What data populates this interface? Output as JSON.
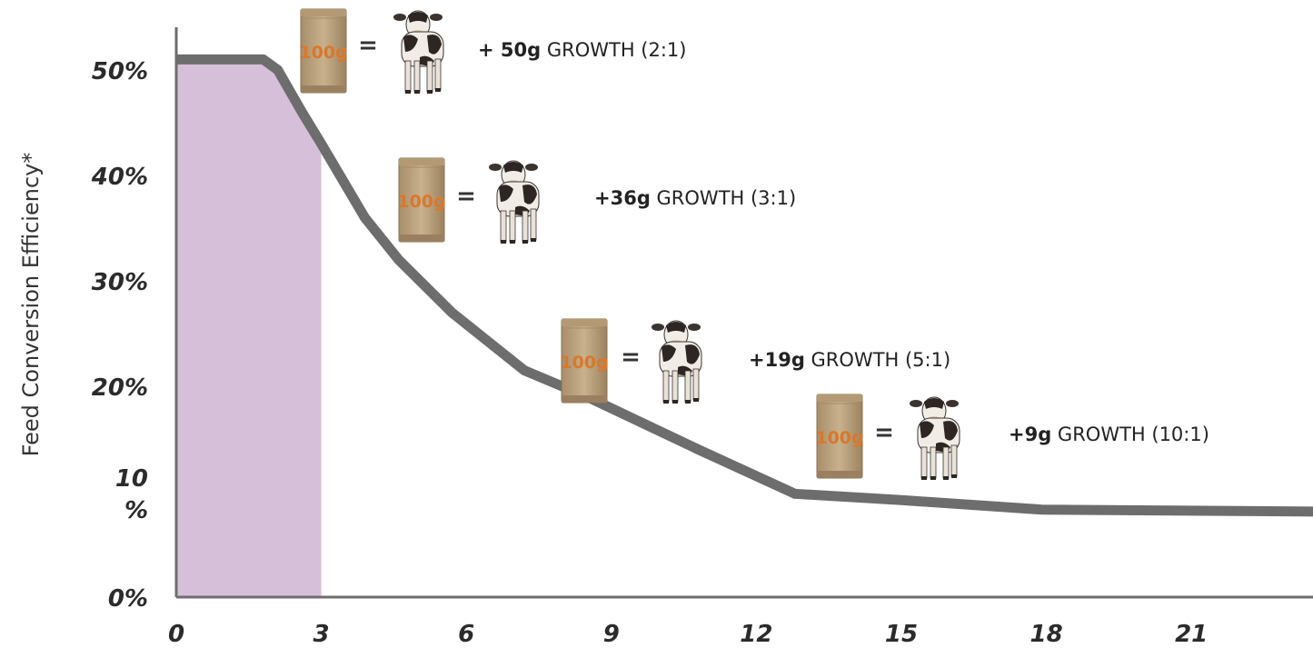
{
  "chart_data": {
    "type": "line",
    "ylabel": "Feed Conversion Efficiency*",
    "xlabel": "",
    "xlim": [
      0,
      24
    ],
    "ylim": [
      0,
      52
    ],
    "x_ticks": [
      "0",
      "3",
      "6",
      "9",
      "12",
      "15",
      "18",
      "21"
    ],
    "y_ticks": [
      {
        "value": 50,
        "label": "50%"
      },
      {
        "value": 40,
        "label": "40%"
      },
      {
        "value": 30,
        "label": "30%"
      },
      {
        "value": 20,
        "label": "20%"
      },
      {
        "value": 10,
        "label": "10\n%"
      },
      {
        "value": 0,
        "label": "0%"
      }
    ],
    "line_color": "#6d6d6d",
    "shade_color": "#d6bfd8",
    "highlight_range": [
      0,
      3
    ],
    "series": [
      {
        "x": [
          0,
          1.8,
          2.1,
          2.6,
          3.0,
          3.9,
          4.6,
          5.7,
          7.2,
          8.5,
          10.8,
          12.8,
          15.0,
          17.9,
          24.0
        ],
        "y": [
          51,
          51,
          50,
          46,
          43,
          36,
          32,
          27,
          21.5,
          19,
          14,
          9.8,
          9.2,
          8.3,
          8.1
        ]
      }
    ],
    "annotations": [
      {
        "bag_label": "100g",
        "equals": "=",
        "bold": "+ 50g",
        "text": " GROWTH (2:1)",
        "icons": [
          "feed-bag-icon",
          "calf-icon"
        ]
      },
      {
        "bag_label": "100g",
        "equals": "=",
        "bold": "+36g",
        "text": " GROWTH (3:1)",
        "icons": [
          "feed-bag-icon",
          "calf-icon"
        ]
      },
      {
        "bag_label": "100g",
        "equals": "=",
        "bold": "+19g",
        "text": " GROWTH (5:1)",
        "icons": [
          "feed-bag-icon",
          "calf-icon"
        ]
      },
      {
        "bag_label": "100g",
        "equals": "=",
        "bold": "+9g",
        "text": " GROWTH (10:1)",
        "icons": [
          "feed-bag-icon",
          "calf-icon"
        ]
      }
    ]
  }
}
